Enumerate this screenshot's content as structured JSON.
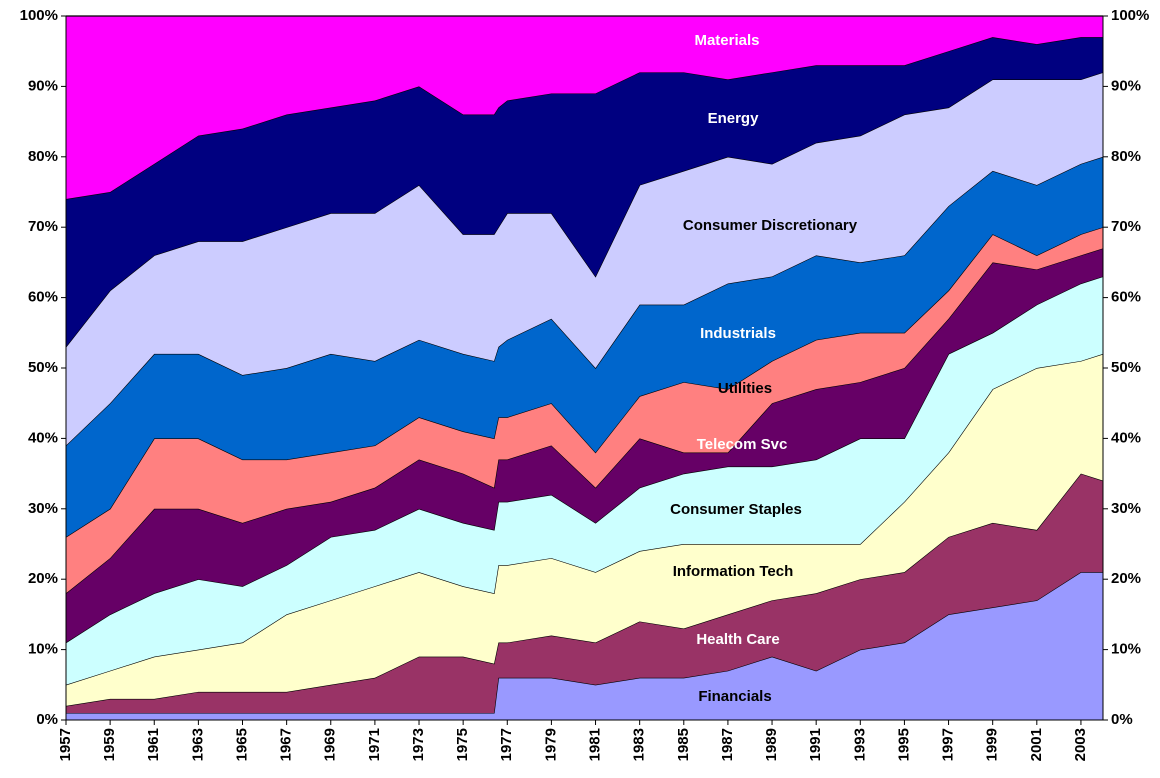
{
  "chart_data": {
    "type": "stacked-area",
    "x": [
      1957,
      1959,
      1961,
      1963,
      1965,
      1967,
      1969,
      1971,
      1973,
      1975,
      1976.4,
      1976.6,
      1977,
      1979,
      1981,
      1983,
      1985,
      1987,
      1989,
      1991,
      1993,
      1995,
      1997,
      1999,
      2001,
      2003,
      2004
    ],
    "xlim": [
      1957,
      2004
    ],
    "xticks": [
      1957,
      1959,
      1961,
      1963,
      1965,
      1967,
      1969,
      1971,
      1973,
      1975,
      1977,
      1979,
      1981,
      1983,
      1985,
      1987,
      1989,
      1991,
      1993,
      1995,
      1997,
      1999,
      2001,
      2003
    ],
    "ylim": [
      0,
      100
    ],
    "yticks": [
      {
        "value": 0,
        "label": "0%"
      },
      {
        "value": 10,
        "label": "10%"
      },
      {
        "value": 20,
        "label": "20%"
      },
      {
        "value": 30,
        "label": "30%"
      },
      {
        "value": 40,
        "label": "40%"
      },
      {
        "value": 50,
        "label": "50%"
      },
      {
        "value": 60,
        "label": "60%"
      },
      {
        "value": 70,
        "label": "70%"
      },
      {
        "value": 80,
        "label": "80%"
      },
      {
        "value": 90,
        "label": "90%"
      },
      {
        "value": 100,
        "label": "100%"
      }
    ],
    "series": [
      {
        "name": "Financials",
        "color": "#9999ff",
        "values": [
          1,
          1,
          1,
          1,
          1,
          1,
          1,
          1,
          1,
          1,
          1,
          6,
          6,
          6,
          5,
          6,
          6,
          7,
          9,
          7,
          10,
          11,
          15,
          16,
          17,
          21,
          21
        ]
      },
      {
        "name": "Health Care",
        "color": "#993366",
        "values": [
          1,
          2,
          2,
          3,
          3,
          3,
          4,
          5,
          8,
          8,
          7,
          5,
          5,
          6,
          6,
          8,
          7,
          8,
          8,
          11,
          10,
          10,
          11,
          12,
          10,
          14,
          13
        ]
      },
      {
        "name": "Information Tech",
        "color": "#ffffcc",
        "values": [
          3,
          4,
          6,
          6,
          7,
          11,
          12,
          13,
          12,
          10,
          10,
          11,
          11,
          11,
          10,
          10,
          12,
          10,
          8,
          7,
          5,
          10,
          12,
          19,
          23,
          16,
          18
        ]
      },
      {
        "name": "Consumer Staples",
        "color": "#ccffff",
        "values": [
          6,
          8,
          9,
          10,
          8,
          7,
          9,
          8,
          9,
          9,
          9,
          9,
          9,
          9,
          7,
          9,
          10,
          11,
          11,
          12,
          15,
          9,
          14,
          8,
          9,
          11,
          11
        ]
      },
      {
        "name": "Telecom Svc",
        "color": "#660066",
        "values": [
          7,
          8,
          12,
          10,
          9,
          8,
          5,
          6,
          7,
          7,
          6,
          6,
          6,
          7,
          5,
          7,
          3,
          2,
          9,
          10,
          8,
          10,
          5,
          10,
          5,
          4,
          4
        ]
      },
      {
        "name": "Utilities",
        "color": "#ff8080",
        "values": [
          8,
          7,
          10,
          10,
          9,
          7,
          7,
          6,
          6,
          6,
          7,
          6,
          6,
          6,
          5,
          6,
          10,
          9,
          6,
          7,
          7,
          5,
          4,
          4,
          2,
          3,
          3
        ]
      },
      {
        "name": "Industrials",
        "color": "#0066cc",
        "values": [
          13,
          15,
          12,
          12,
          12,
          13,
          14,
          12,
          11,
          11,
          11,
          10,
          11,
          12,
          12,
          13,
          11,
          15,
          12,
          12,
          10,
          11,
          12,
          9,
          10,
          10,
          10
        ]
      },
      {
        "name": "Consumer Discretionary",
        "color": "#ccccff",
        "values": [
          14,
          16,
          14,
          16,
          19,
          20,
          20,
          21,
          22,
          17,
          18,
          17,
          18,
          15,
          13,
          17,
          19,
          18,
          16,
          16,
          18,
          20,
          14,
          13,
          15,
          12,
          12
        ]
      },
      {
        "name": "Energy",
        "color": "#000080",
        "values": [
          21,
          14,
          13,
          15,
          16,
          16,
          15,
          16,
          14,
          17,
          17,
          17,
          16,
          17,
          26,
          16,
          14,
          11,
          13,
          11,
          10,
          7,
          8,
          6,
          5,
          6,
          5
        ]
      },
      {
        "name": "Materials",
        "color": "#ff00ff",
        "values": [
          26,
          25,
          21,
          17,
          16,
          14,
          13,
          12,
          10,
          14,
          14,
          13,
          12,
          11,
          11,
          8,
          8,
          9,
          8,
          7,
          7,
          7,
          5,
          3,
          4,
          3,
          3
        ]
      }
    ]
  }
}
